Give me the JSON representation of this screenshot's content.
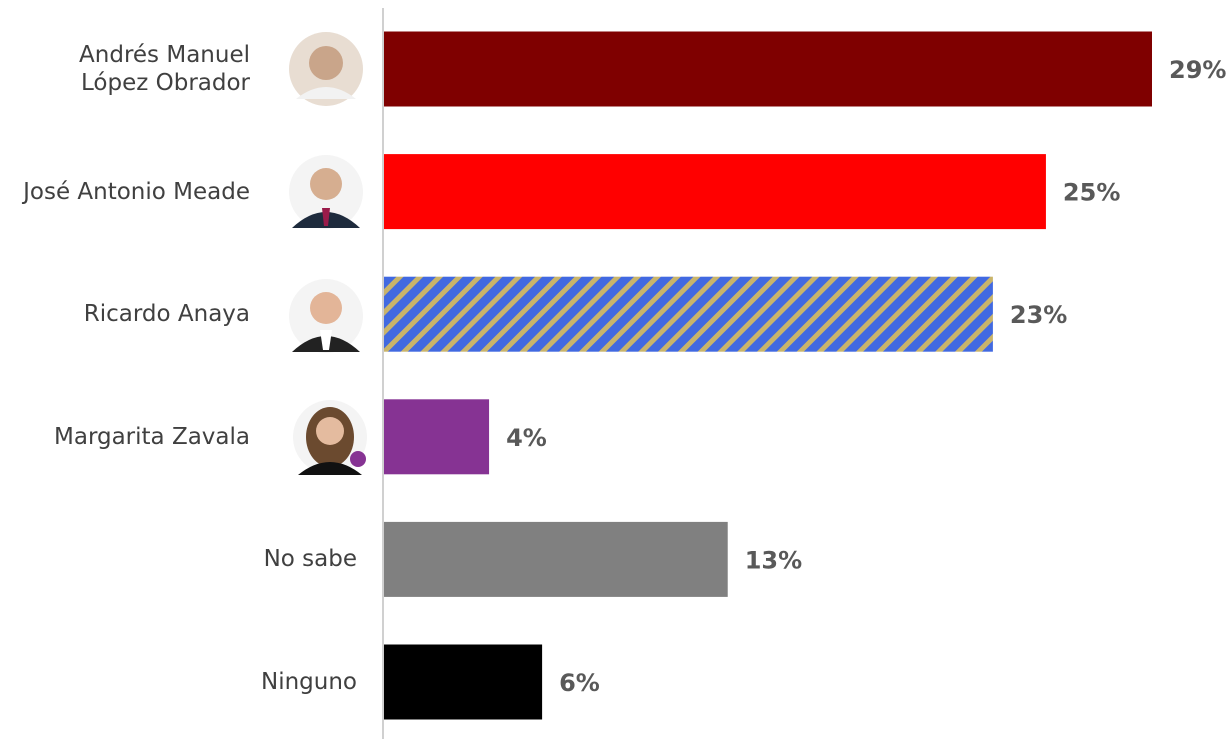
{
  "chart_data": {
    "type": "hbar",
    "categories": [
      "Andrés Manuel López Obrador",
      "José Antonio Meade",
      "Ricardo Anaya",
      "Margarita Zavala",
      "No sabe",
      "Ninguno"
    ],
    "values": [
      29,
      25,
      23,
      4,
      13,
      6
    ],
    "value_labels": [
      "29%",
      "25%",
      "23%",
      "4%",
      "13%",
      "6%"
    ],
    "colors": [
      "#7f0000",
      "#ff0000",
      "#4169e1",
      "#863393",
      "#808080",
      "#000000"
    ],
    "hatch_color": "#c9b46a",
    "hatched": [
      false,
      false,
      true,
      false,
      false,
      false
    ]
  }
}
